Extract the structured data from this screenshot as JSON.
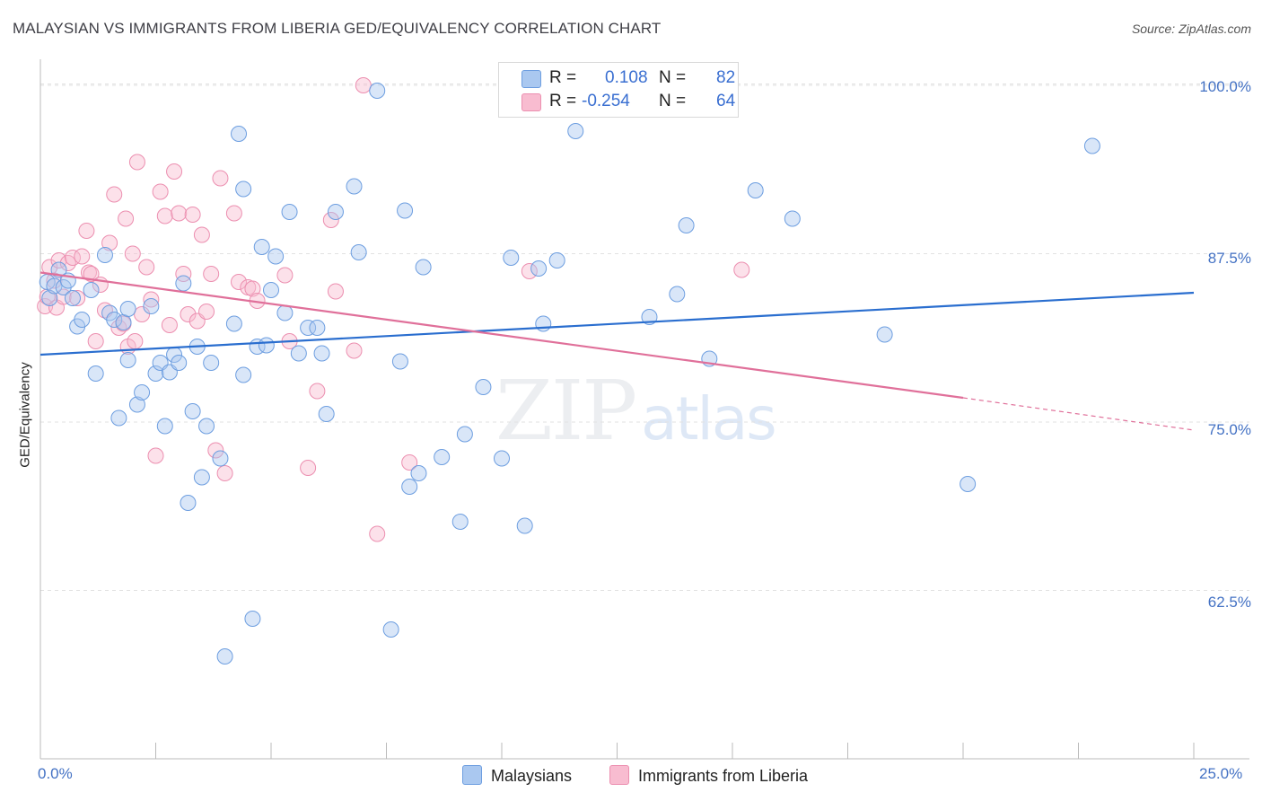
{
  "header": {
    "title": "MALAYSIAN VS IMMIGRANTS FROM LIBERIA GED/EQUIVALENCY CORRELATION CHART",
    "source": "Source: ZipAtlas.com"
  },
  "watermark": {
    "zip": "ZIP",
    "atlas": "atlas"
  },
  "legend": {
    "rows": [
      {
        "r_label": "R =",
        "r_value": "0.108",
        "n_label": "N =",
        "n_value": "82",
        "color": "#aac8f0"
      },
      {
        "r_label": "R =",
        "r_value": "-0.254",
        "n_label": "N =",
        "n_value": "64",
        "color": "#f8bcd0"
      }
    ]
  },
  "bottom_legend": [
    {
      "label": "Malaysians",
      "color": "#aac8f0"
    },
    {
      "label": "Immigrants from Liberia",
      "color": "#f8bcd0"
    }
  ],
  "colors": {
    "blue_point": "#aac8f0",
    "blue_line": "#2a6ecf",
    "pink_point": "#f8bcd0",
    "pink_line": "#e0709a",
    "tick_text": "#4472c4"
  },
  "chart_data": {
    "type": "scatter",
    "title": "MALAYSIAN VS IMMIGRANTS FROM LIBERIA GED/EQUIVALENCY CORRELATION CHART",
    "xlabel": "",
    "ylabel": "GED/Equivalency",
    "xlim": [
      0,
      25
    ],
    "ylim": [
      50,
      101
    ],
    "x_tick_labels": [
      "0.0%",
      "25.0%"
    ],
    "y_ticks": [
      62.5,
      75.0,
      87.5,
      100.0
    ],
    "y_tick_labels": [
      "62.5%",
      "75.0%",
      "87.5%",
      "100.0%"
    ],
    "grid": "horizontal dashed",
    "legend_position": "top-center",
    "series": [
      {
        "name": "Malaysians",
        "color": "#aac8f0",
        "trend": {
          "x": [
            0,
            25
          ],
          "y": [
            80.0,
            84.6
          ],
          "style": "solid"
        },
        "points": [
          [
            0.15,
            85.4
          ],
          [
            0.2,
            84.2
          ],
          [
            0.3,
            85.1
          ],
          [
            0.4,
            86.3
          ],
          [
            0.5,
            85.0
          ],
          [
            0.6,
            85.5
          ],
          [
            0.7,
            84.2
          ],
          [
            0.8,
            82.1
          ],
          [
            0.9,
            82.6
          ],
          [
            1.1,
            84.8
          ],
          [
            1.2,
            78.6
          ],
          [
            1.4,
            87.4
          ],
          [
            1.5,
            83.1
          ],
          [
            1.6,
            82.6
          ],
          [
            1.7,
            75.3
          ],
          [
            1.8,
            82.4
          ],
          [
            1.9,
            83.4
          ],
          [
            1.9,
            79.6
          ],
          [
            2.1,
            76.3
          ],
          [
            2.2,
            77.2
          ],
          [
            2.4,
            83.6
          ],
          [
            2.5,
            78.6
          ],
          [
            2.6,
            79.4
          ],
          [
            2.7,
            74.7
          ],
          [
            2.8,
            78.7
          ],
          [
            2.9,
            80.0
          ],
          [
            3.0,
            79.4
          ],
          [
            3.1,
            85.3
          ],
          [
            3.2,
            69.0
          ],
          [
            3.3,
            75.8
          ],
          [
            3.4,
            80.6
          ],
          [
            3.5,
            70.9
          ],
          [
            3.6,
            74.7
          ],
          [
            3.7,
            79.4
          ],
          [
            3.9,
            72.3
          ],
          [
            4.0,
            57.6
          ],
          [
            4.2,
            82.3
          ],
          [
            4.3,
            96.4
          ],
          [
            4.4,
            92.3
          ],
          [
            4.4,
            78.5
          ],
          [
            4.6,
            60.4
          ],
          [
            4.7,
            80.6
          ],
          [
            4.8,
            88.0
          ],
          [
            4.9,
            80.7
          ],
          [
            5.0,
            84.8
          ],
          [
            5.1,
            87.3
          ],
          [
            5.3,
            83.1
          ],
          [
            5.4,
            90.6
          ],
          [
            5.6,
            80.1
          ],
          [
            5.8,
            82.0
          ],
          [
            6.0,
            82.0
          ],
          [
            6.1,
            80.1
          ],
          [
            6.2,
            75.6
          ],
          [
            6.4,
            90.6
          ],
          [
            6.8,
            92.5
          ],
          [
            6.9,
            87.6
          ],
          [
            7.3,
            99.6
          ],
          [
            7.6,
            59.6
          ],
          [
            7.8,
            79.5
          ],
          [
            7.9,
            90.7
          ],
          [
            8.0,
            70.2
          ],
          [
            8.2,
            71.2
          ],
          [
            8.3,
            86.5
          ],
          [
            8.7,
            72.4
          ],
          [
            9.1,
            67.6
          ],
          [
            9.2,
            74.1
          ],
          [
            9.6,
            77.6
          ],
          [
            10.0,
            72.3
          ],
          [
            10.2,
            87.2
          ],
          [
            10.5,
            67.3
          ],
          [
            10.8,
            86.4
          ],
          [
            10.9,
            82.3
          ],
          [
            11.2,
            87.0
          ],
          [
            11.6,
            96.6
          ],
          [
            13.2,
            82.8
          ],
          [
            13.8,
            84.5
          ],
          [
            14.0,
            89.6
          ],
          [
            14.5,
            79.7
          ],
          [
            15.5,
            92.2
          ],
          [
            16.3,
            90.1
          ],
          [
            18.3,
            81.5
          ],
          [
            20.1,
            70.4
          ],
          [
            22.8,
            95.5
          ]
        ]
      },
      {
        "name": "Immigrants from Liberia",
        "color": "#f8bcd0",
        "trend": {
          "x": [
            0,
            20
          ],
          "y": [
            86.1,
            76.8
          ],
          "style": "solid",
          "dashed_extension_to": [
            25,
            74.4
          ]
        },
        "points": [
          [
            0.1,
            83.6
          ],
          [
            0.15,
            84.3
          ],
          [
            0.2,
            86.5
          ],
          [
            0.3,
            85.5
          ],
          [
            0.35,
            83.5
          ],
          [
            0.4,
            87.0
          ],
          [
            0.5,
            84.3
          ],
          [
            0.6,
            86.8
          ],
          [
            0.7,
            87.2
          ],
          [
            0.8,
            84.2
          ],
          [
            0.9,
            87.3
          ],
          [
            1.0,
            89.2
          ],
          [
            1.05,
            86.1
          ],
          [
            1.1,
            86.0
          ],
          [
            1.2,
            81.0
          ],
          [
            1.3,
            85.2
          ],
          [
            1.4,
            83.3
          ],
          [
            1.5,
            88.3
          ],
          [
            1.6,
            91.9
          ],
          [
            1.7,
            82.0
          ],
          [
            1.8,
            82.3
          ],
          [
            1.85,
            90.1
          ],
          [
            1.9,
            80.6
          ],
          [
            2.0,
            87.5
          ],
          [
            2.05,
            81.0
          ],
          [
            2.1,
            94.3
          ],
          [
            2.2,
            83.0
          ],
          [
            2.3,
            86.5
          ],
          [
            2.4,
            84.1
          ],
          [
            2.5,
            72.5
          ],
          [
            2.6,
            92.1
          ],
          [
            2.7,
            90.3
          ],
          [
            2.8,
            82.2
          ],
          [
            2.9,
            93.6
          ],
          [
            3.0,
            90.5
          ],
          [
            3.1,
            86.0
          ],
          [
            3.2,
            83.0
          ],
          [
            3.3,
            90.4
          ],
          [
            3.4,
            82.5
          ],
          [
            3.5,
            88.9
          ],
          [
            3.6,
            83.2
          ],
          [
            3.7,
            86.0
          ],
          [
            3.8,
            72.9
          ],
          [
            3.9,
            93.1
          ],
          [
            4.0,
            71.2
          ],
          [
            4.2,
            90.5
          ],
          [
            4.3,
            85.4
          ],
          [
            4.5,
            85.0
          ],
          [
            4.6,
            84.9
          ],
          [
            4.7,
            84.0
          ],
          [
            5.3,
            85.9
          ],
          [
            5.4,
            81.0
          ],
          [
            5.8,
            71.6
          ],
          [
            6.0,
            77.3
          ],
          [
            6.3,
            90.0
          ],
          [
            6.4,
            84.7
          ],
          [
            6.8,
            80.3
          ],
          [
            7.0,
            100.0
          ],
          [
            7.3,
            66.7
          ],
          [
            8.0,
            72.0
          ],
          [
            10.6,
            86.2
          ],
          [
            15.2,
            86.3
          ]
        ]
      }
    ]
  }
}
